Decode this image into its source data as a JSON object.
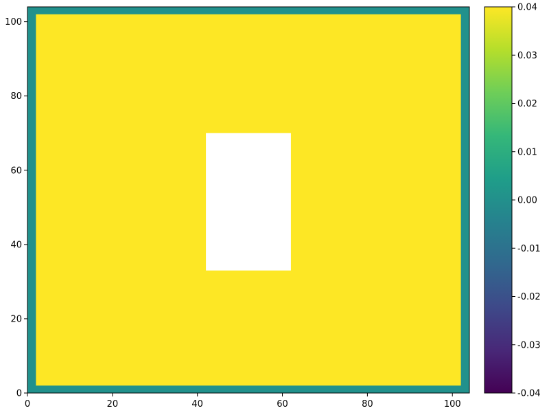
{
  "chart_data": {
    "type": "heatmap",
    "title": "",
    "xlabel": "",
    "ylabel": "",
    "xlim": [
      0,
      104
    ],
    "ylim": [
      0,
      104
    ],
    "x_ticks": [
      0,
      20,
      40,
      60,
      80,
      100
    ],
    "y_ticks": [
      0,
      20,
      40,
      60,
      80,
      100
    ],
    "grid": false,
    "regions": [
      {
        "name": "border",
        "x": [
          0,
          104
        ],
        "y": [
          0,
          104
        ],
        "value": 0.0,
        "color": "#21918c"
      },
      {
        "name": "interior",
        "x": [
          2,
          102
        ],
        "y": [
          2,
          102
        ],
        "value": 0.04,
        "color": "#fde725"
      },
      {
        "name": "masked-hole",
        "x": [
          42,
          62
        ],
        "y": [
          33,
          70
        ],
        "value": null,
        "color": "#ffffff"
      }
    ],
    "colorbar": {
      "min": -0.04,
      "max": 0.04,
      "ticks": [
        "0.04",
        "0.03",
        "0.02",
        "0.01",
        "0.00",
        "-0.01",
        "-0.02",
        "-0.03",
        "-0.04"
      ],
      "tick_values": [
        0.04,
        0.03,
        0.02,
        0.01,
        0.0,
        -0.01,
        -0.02,
        -0.03,
        -0.04
      ],
      "colormap": "viridis",
      "stops": [
        "#440154",
        "#482878",
        "#3e4989",
        "#31688e",
        "#26828e",
        "#1f9e89",
        "#35b779",
        "#6ece58",
        "#b5de2b",
        "#fde725"
      ]
    }
  }
}
